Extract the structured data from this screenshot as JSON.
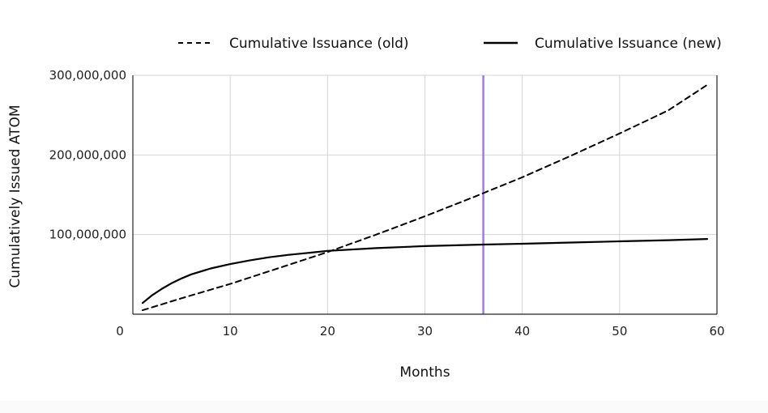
{
  "chart_data": {
    "type": "line",
    "title": "",
    "xlabel": "Months",
    "ylabel": "Cumulatively Issued ATOM",
    "xlim": [
      0,
      60
    ],
    "ylim": [
      0,
      300000000
    ],
    "x_ticks": [
      0,
      10,
      20,
      30,
      40,
      50,
      60
    ],
    "x_tick_labels": [
      "0",
      "10",
      "20",
      "30",
      "40",
      "50",
      "60"
    ],
    "y_ticks": [
      100000000,
      200000000,
      300000000
    ],
    "y_tick_labels": [
      "100,000,000",
      "200,000,000",
      "300,000,000"
    ],
    "grid": true,
    "legend_position": "top",
    "marker_line": {
      "x": 36,
      "color": "#9d7be8"
    },
    "series": [
      {
        "name": "Cumulative Issuance (old)",
        "style": "dashed",
        "color": "#000000",
        "x": [
          1,
          5,
          10,
          15,
          20,
          25,
          30,
          35,
          40,
          45,
          50,
          55,
          59
        ],
        "y": [
          5000000,
          20000000,
          38000000,
          58000000,
          78000000,
          100000000,
          123000000,
          147000000,
          172000000,
          199000000,
          227000000,
          256000000,
          288000000
        ]
      },
      {
        "name": "Cumulative Issuance (new)",
        "style": "solid",
        "color": "#000000",
        "x": [
          1,
          2,
          3,
          4,
          5,
          6,
          8,
          10,
          12,
          14,
          16,
          18,
          20,
          25,
          30,
          36,
          40,
          45,
          50,
          55,
          59
        ],
        "y": [
          14000000,
          24000000,
          32000000,
          39000000,
          45000000,
          50000000,
          57500000,
          63000000,
          67500000,
          71500000,
          74500000,
          77000000,
          79500000,
          83000000,
          85500000,
          87500000,
          88500000,
          90000000,
          91500000,
          93000000,
          94500000
        ]
      }
    ]
  }
}
